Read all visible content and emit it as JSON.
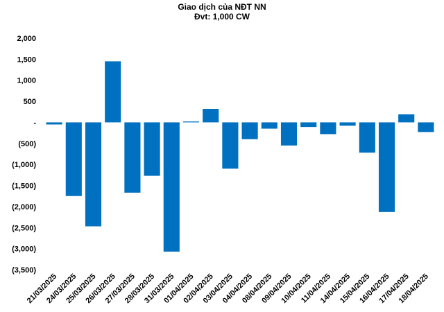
{
  "chart_data": {
    "type": "bar",
    "title": "Giao dịch của NĐT NN",
    "subtitle": "Đvt: 1,000 CW",
    "xlabel": "",
    "ylabel": "",
    "ylim": [
      -3500,
      2000
    ],
    "yticks": [
      2000,
      1500,
      1000,
      500,
      0,
      -500,
      -1000,
      -1500,
      -2000,
      -2500,
      -3000,
      -3500
    ],
    "ytick_labels": [
      "2,000",
      "1,500",
      "1,000",
      "500",
      "-",
      "(500)",
      "(1,000)",
      "(1,500)",
      "(2,000)",
      "(2,500)",
      "(3,000)",
      "(3,500)"
    ],
    "grid": false,
    "legend": "none",
    "bar_color": "#0070C0",
    "categories": [
      "21/03/2025",
      "24/03/2025",
      "25/03/2025",
      "26/03/2025",
      "27/03/2025",
      "28/03/2025",
      "31/03/2025",
      "01/04/2025",
      "02/04/2025",
      "03/04/2025",
      "04/04/2025",
      "08/04/2025",
      "09/04/2025",
      "10/04/2025",
      "11/04/2025",
      "14/04/2025",
      "15/04/2025",
      "16/04/2025",
      "17/04/2025",
      "18/04/2025"
    ],
    "values": [
      -50,
      -1750,
      -2470,
      1450,
      -1670,
      -1270,
      -3070,
      20,
      320,
      -1100,
      -400,
      -150,
      -550,
      -110,
      -280,
      -80,
      -720,
      -2130,
      190,
      -230
    ]
  }
}
